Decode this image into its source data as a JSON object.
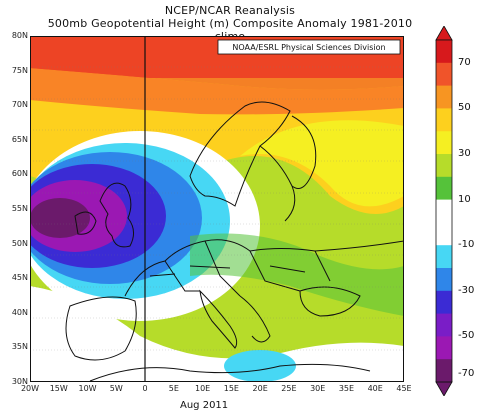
{
  "title": {
    "line1": "NCEP/NCAR Reanalysis",
    "line2": "500mb Geopotential Height (m) Composite Anomaly 1981-2010 climo"
  },
  "credit": "NOAA/ESRL Physical Sciences Division",
  "footer": "Aug 2011",
  "map": {
    "lat_labels": [
      "80N",
      "75N",
      "70N",
      "65N",
      "60N",
      "55N",
      "50N",
      "45N",
      "40N",
      "35N",
      "30N"
    ],
    "lon_labels": [
      "20W",
      "15W",
      "10W",
      "5W",
      "0",
      "5E",
      "10E",
      "15E",
      "20E",
      "25E",
      "30E",
      "35E",
      "40E",
      "45E"
    ],
    "lat_range": [
      30,
      80
    ],
    "lon_range": [
      -20,
      45
    ],
    "highlight_meridian": "0"
  },
  "colorbar": {
    "labels": [
      "70",
      "50",
      "30",
      "10",
      "-10",
      "-30",
      "-50",
      "-70"
    ],
    "colors": [
      "#d7191c",
      "#f0542a",
      "#f79522",
      "#fdd01e",
      "#f5ef22",
      "#b6dc2a",
      "#55c23a",
      "#ffffff",
      "#ffffff",
      "#47d7f4",
      "#2f86e9",
      "#3b2bd4",
      "#7a1dc7",
      "#9b18b3",
      "#6b1a6b"
    ]
  },
  "anomaly_colors": {
    "strong_positive": "#e8271f",
    "positive": "#f98426",
    "moderate_positive": "#fdbf1e",
    "weak_positive": "#f5ef22",
    "slight_positive": "#b6dc2a",
    "near_zero_positive": "#55c23a",
    "neutral": "#ffffff",
    "slight_negative": "#47d7f4",
    "negative": "#2f86e9",
    "strong_negative": "#3b2bd4",
    "very_strong_negative": "#9b18b3",
    "extreme_negative": "#6b1a6b"
  }
}
